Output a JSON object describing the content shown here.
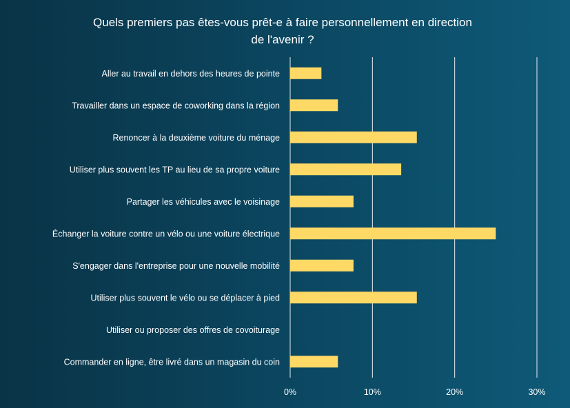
{
  "chart_data": {
    "type": "bar",
    "orientation": "horizontal",
    "title_lines": [
      "Quels premiers pas êtes-vous prêt-e à faire personnellement  en direction",
      "de l'avenir ?"
    ],
    "categories": [
      "Aller au travail en dehors des heures de pointe",
      "Travailler dans un espace de coworking dans la région",
      "Renoncer à la deuxième voiture du ménage",
      "Utiliser plus souvent les TP au lieu de sa propre voiture",
      "Partager les véhicules avec le voisinage",
      "Échanger la voiture contre un vélo ou une voiture électrique",
      "S'engager dans l'entreprise pour une nouvelle mobilité",
      "Utiliser plus souvent le vélo ou se déplacer à pied",
      "Utiliser ou proposer des offres de covoiturage",
      "Commander en ligne, être livré dans un magasin du coin"
    ],
    "values": [
      3.8,
      5.8,
      15.4,
      13.5,
      7.7,
      25.0,
      7.7,
      15.4,
      0,
      5.8
    ],
    "xlim": [
      0,
      30
    ],
    "x_ticks": [
      0,
      10,
      20,
      30
    ],
    "x_tick_labels": [
      "0%",
      "10%",
      "20%",
      "30%"
    ],
    "grid": true,
    "bar_color": "#ffd966",
    "grid_color": "#ffffff"
  }
}
